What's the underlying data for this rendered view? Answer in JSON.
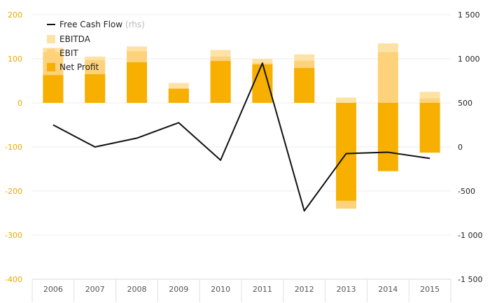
{
  "chart_data": {
    "type": "bar",
    "categories": [
      "2006",
      "2007",
      "2008",
      "2009",
      "2010",
      "2011",
      "2012",
      "2013",
      "2014",
      "2015"
    ],
    "series": [
      {
        "name": "EBITDA",
        "kind": "bar",
        "axis": "left",
        "color": "#fde2a6",
        "values": [
          125,
          105,
          128,
          45,
          120,
          100,
          110,
          12,
          135,
          25
        ]
      },
      {
        "name": "EBIT",
        "kind": "bar",
        "axis": "left",
        "color": "#fdd27a",
        "values": [
          115,
          97,
          117,
          33,
          105,
          90,
          95,
          -240,
          115,
          10
        ]
      },
      {
        "name": "Net Profit",
        "kind": "bar",
        "axis": "left",
        "color": "#f7b000",
        "values": [
          63,
          65,
          92,
          32,
          95,
          87,
          79,
          -222,
          -155,
          -113
        ]
      },
      {
        "name": "Free Cash Flow",
        "suffix": "(rhs)",
        "kind": "line",
        "axis": "right",
        "color": "#111111",
        "values": [
          250,
          0,
          100,
          275,
          -150,
          950,
          -725,
          -75,
          -60,
          -130
        ]
      }
    ],
    "y_left": {
      "min": -400,
      "max": 200,
      "ticks": [
        200,
        100,
        0,
        -100,
        -200,
        -300,
        -400
      ],
      "labels": [
        "200",
        "100",
        "0",
        "-100",
        "-200",
        "-300",
        "-400"
      ]
    },
    "y_right": {
      "min": -1500,
      "max": 1500,
      "ticks": [
        1500,
        1000,
        500,
        0,
        -500,
        -1000,
        -1500
      ],
      "labels": [
        "1 500",
        "1 000",
        "500",
        "0",
        "-500",
        "-1 000",
        "-1 500"
      ]
    },
    "grid": true,
    "legend_position": "top-left"
  }
}
